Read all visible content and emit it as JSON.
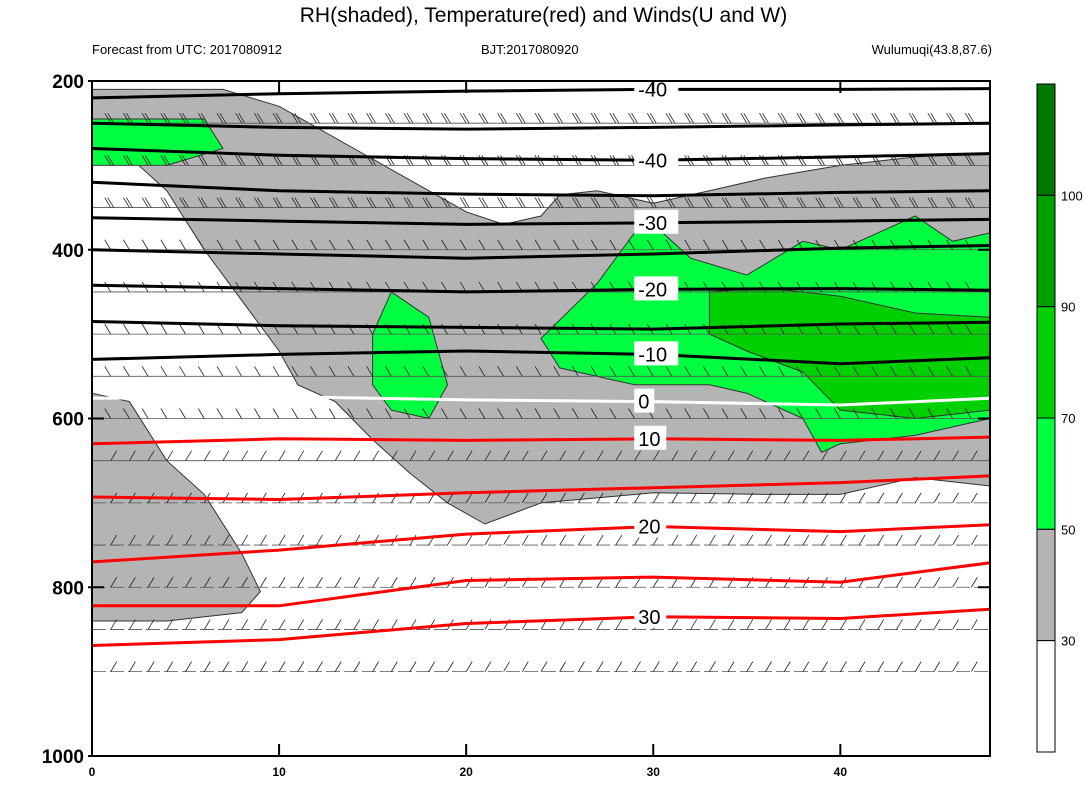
{
  "header": {
    "title": "RH(shaded), Temperature(red) and Winds(U and W)",
    "forecast_label": "Forecast from UTC: 2017080912",
    "bjt_label": "BJT:2017080920",
    "station_label": "Wulumuqi(43.8,87.6)"
  },
  "colors": {
    "rh_30_50": "#b4b4b4",
    "rh_50_70": "#00ff40",
    "rh_70_90": "#00d000",
    "rh_90_100": "#00a000",
    "rh_100_plus": "#007800",
    "temp_warm": "#ff0000",
    "temp_cold": "#000000",
    "freezing": "#ffffff",
    "frame": "#000000"
  },
  "chart_data": {
    "type": "heatmap",
    "title": "RH(shaded), Temperature(red) and Winds(U and W)",
    "x_axis": {
      "range": [
        0,
        48
      ],
      "ticks": [
        0,
        10,
        20,
        30,
        40
      ]
    },
    "y_axis": {
      "range": [
        1000,
        200
      ],
      "reversed": true,
      "ticks": [
        200,
        400,
        600,
        800,
        1000
      ]
    },
    "colorbar": {
      "levels": [
        "30",
        "50",
        "70",
        "90",
        "100"
      ],
      "colors": [
        "#ffffff",
        "#b4b4b4",
        "#00ff40",
        "#00d000",
        "#00a000",
        "#007800"
      ]
    },
    "pressure_levels": [
      200,
      250,
      300,
      350,
      400,
      450,
      500,
      550,
      600,
      650,
      700,
      750,
      800,
      850,
      900
    ],
    "temperature_contours": [
      {
        "label": "-40",
        "temp": -40,
        "points": [
          [
            0,
            220
          ],
          [
            10,
            215
          ],
          [
            20,
            212
          ],
          [
            30,
            210
          ],
          [
            40,
            210
          ],
          [
            48,
            209
          ]
        ]
      },
      {
        "label": "-40",
        "temp": -40,
        "points": [
          [
            0,
            250
          ],
          [
            10,
            255
          ],
          [
            20,
            257
          ],
          [
            30,
            255
          ],
          [
            40,
            252
          ],
          [
            48,
            250
          ]
        ]
      },
      {
        "label": "-40",
        "temp": -40,
        "points": [
          [
            0,
            280
          ],
          [
            10,
            288
          ],
          [
            20,
            292
          ],
          [
            30,
            294
          ],
          [
            40,
            290
          ],
          [
            48,
            286
          ]
        ]
      },
      {
        "label": "-30",
        "temp": -30,
        "points": [
          [
            0,
            320
          ],
          [
            10,
            330
          ],
          [
            20,
            334
          ],
          [
            30,
            336
          ],
          [
            40,
            332
          ],
          [
            48,
            330
          ]
        ]
      },
      {
        "label": "-30",
        "temp": -30,
        "points": [
          [
            0,
            362
          ],
          [
            10,
            366
          ],
          [
            20,
            370
          ],
          [
            30,
            368
          ],
          [
            40,
            366
          ],
          [
            48,
            364
          ]
        ]
      },
      {
        "label": "-20",
        "temp": -20,
        "points": [
          [
            0,
            400
          ],
          [
            10,
            405
          ],
          [
            20,
            410
          ],
          [
            30,
            405
          ],
          [
            40,
            398
          ],
          [
            48,
            395
          ]
        ]
      },
      {
        "label": "-20",
        "temp": -20,
        "points": [
          [
            0,
            442
          ],
          [
            10,
            446
          ],
          [
            20,
            450
          ],
          [
            30,
            447
          ],
          [
            40,
            446
          ],
          [
            48,
            448
          ]
        ]
      },
      {
        "label": "-10",
        "temp": -10,
        "points": [
          [
            0,
            485
          ],
          [
            10,
            490
          ],
          [
            20,
            492
          ],
          [
            30,
            494
          ],
          [
            40,
            488
          ],
          [
            48,
            486
          ]
        ]
      },
      {
        "label": "-10",
        "temp": -10,
        "points": [
          [
            0,
            530
          ],
          [
            10,
            524
          ],
          [
            20,
            520
          ],
          [
            30,
            524
          ],
          [
            40,
            535
          ],
          [
            48,
            528
          ]
        ]
      },
      {
        "label": "0",
        "temp": 0,
        "points": [
          [
            0,
            576
          ],
          [
            10,
            574
          ],
          [
            20,
            578
          ],
          [
            30,
            580
          ],
          [
            40,
            584
          ],
          [
            48,
            576
          ]
        ]
      },
      {
        "label": "10",
        "temp": 10,
        "points": [
          [
            0,
            630
          ],
          [
            10,
            624
          ],
          [
            20,
            626
          ],
          [
            30,
            624
          ],
          [
            40,
            626
          ],
          [
            48,
            622
          ]
        ]
      },
      {
        "label": "10",
        "temp": 10,
        "points": [
          [
            0,
            693
          ],
          [
            10,
            696
          ],
          [
            20,
            688
          ],
          [
            30,
            682
          ],
          [
            40,
            676
          ],
          [
            48,
            668
          ]
        ]
      },
      {
        "label": "20",
        "temp": 20,
        "points": [
          [
            0,
            770
          ],
          [
            10,
            756
          ],
          [
            20,
            737
          ],
          [
            30,
            728
          ],
          [
            40,
            734
          ],
          [
            48,
            726
          ]
        ]
      },
      {
        "label": "20",
        "temp": 20,
        "points": [
          [
            0,
            822
          ],
          [
            10,
            822
          ],
          [
            20,
            792
          ],
          [
            30,
            788
          ],
          [
            40,
            794
          ],
          [
            48,
            771
          ]
        ]
      },
      {
        "label": "30",
        "temp": 30,
        "points": [
          [
            0,
            869
          ],
          [
            10,
            862
          ],
          [
            20,
            843
          ],
          [
            30,
            835
          ],
          [
            40,
            837
          ],
          [
            48,
            826
          ]
        ]
      }
    ],
    "rh_regions": [
      {
        "level": "30-50",
        "points": [
          [
            0,
            210
          ],
          [
            7,
            210
          ],
          [
            10,
            230
          ],
          [
            14,
            280
          ],
          [
            18,
            330
          ],
          [
            20,
            355
          ],
          [
            22,
            370
          ],
          [
            24,
            360
          ],
          [
            25,
            335
          ],
          [
            27,
            330
          ],
          [
            30,
            345
          ],
          [
            33,
            330
          ],
          [
            36,
            315
          ],
          [
            40,
            300
          ],
          [
            44,
            290
          ],
          [
            48,
            285
          ],
          [
            48,
            680
          ],
          [
            44,
            670
          ],
          [
            40,
            690
          ],
          [
            36,
            690
          ],
          [
            30,
            688
          ],
          [
            24,
            700
          ],
          [
            21,
            725
          ],
          [
            19,
            700
          ],
          [
            17,
            665
          ],
          [
            15,
            625
          ],
          [
            13,
            580
          ],
          [
            11,
            560
          ],
          [
            10,
            520
          ],
          [
            8,
            460
          ],
          [
            6,
            400
          ],
          [
            4,
            330
          ],
          [
            2,
            290
          ],
          [
            0,
            280
          ]
        ]
      },
      {
        "level": "30-50",
        "points": [
          [
            0,
            570
          ],
          [
            2,
            580
          ],
          [
            4,
            650
          ],
          [
            6,
            690
          ],
          [
            8,
            760
          ],
          [
            9,
            805
          ],
          [
            8,
            830
          ],
          [
            4,
            840
          ],
          [
            0,
            840
          ]
        ]
      },
      {
        "level": "50-70",
        "points": [
          [
            0,
            245
          ],
          [
            6,
            245
          ],
          [
            7,
            280
          ],
          [
            4,
            300
          ],
          [
            0,
            300
          ]
        ]
      },
      {
        "level": "50-70",
        "points": [
          [
            16,
            450
          ],
          [
            18,
            480
          ],
          [
            19,
            560
          ],
          [
            18,
            600
          ],
          [
            16,
            590
          ],
          [
            15,
            560
          ],
          [
            15,
            500
          ]
        ]
      },
      {
        "level": "50-70",
        "points": [
          [
            24,
            505
          ],
          [
            27,
            440
          ],
          [
            29,
            380
          ],
          [
            30,
            370
          ],
          [
            32,
            410
          ],
          [
            35,
            430
          ],
          [
            38,
            390
          ],
          [
            40,
            400
          ],
          [
            42,
            380
          ],
          [
            44,
            360
          ],
          [
            46,
            390
          ],
          [
            48,
            380
          ],
          [
            48,
            600
          ],
          [
            44,
            620
          ],
          [
            40,
            630
          ],
          [
            39,
            640
          ],
          [
            38,
            600
          ],
          [
            35,
            570
          ],
          [
            33,
            560
          ],
          [
            29,
            560
          ],
          [
            25,
            540
          ]
        ]
      },
      {
        "level": "70-90",
        "points": [
          [
            33,
            450
          ],
          [
            36,
            445
          ],
          [
            40,
            455
          ],
          [
            44,
            475
          ],
          [
            48,
            480
          ],
          [
            48,
            590
          ],
          [
            44,
            600
          ],
          [
            40,
            590
          ],
          [
            38,
            545
          ],
          [
            35,
            520
          ],
          [
            33,
            500
          ]
        ]
      }
    ],
    "wind_rows": [
      250,
      300,
      350,
      400,
      450,
      500,
      550,
      600,
      650,
      700,
      750,
      800,
      850,
      900
    ]
  }
}
